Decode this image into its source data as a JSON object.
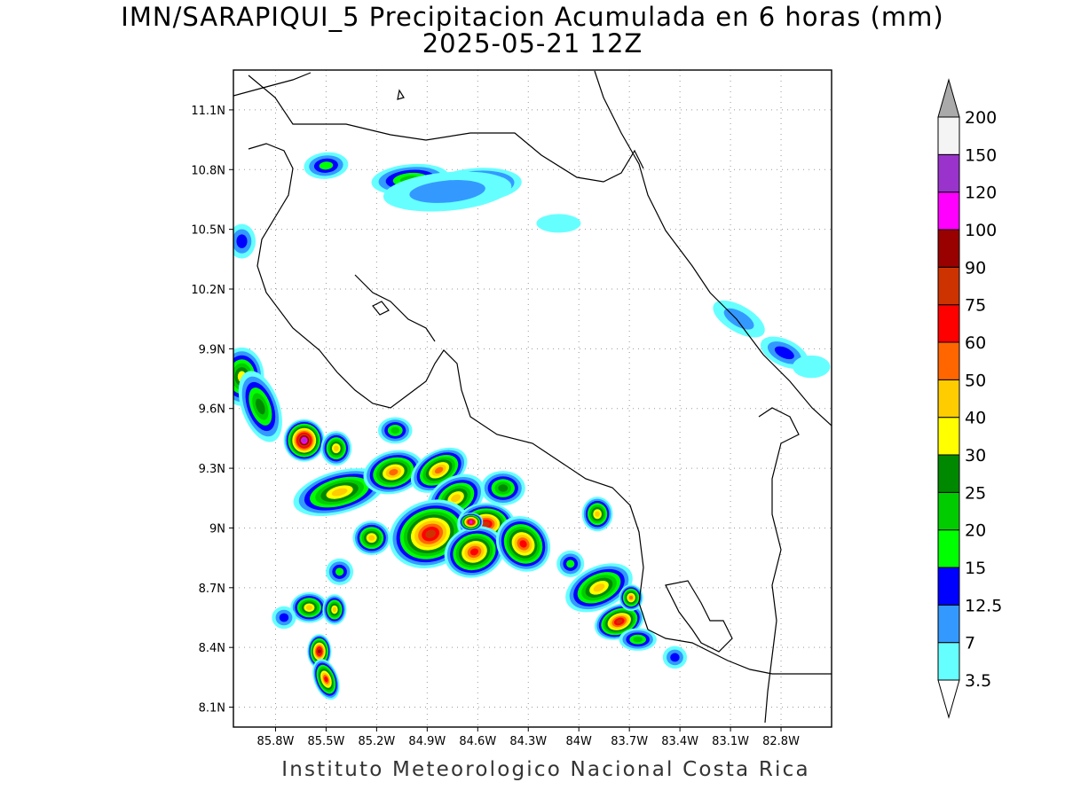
{
  "title": {
    "line1": "IMN/SARAPIQUI_5 Precipitacion Acumulada en 6 horas (mm)",
    "line2": "2025-05-21 12Z"
  },
  "credit": "Instituto Meteorologico Nacional Costa Rica",
  "map": {
    "lon_range": [
      -86.05,
      -82.5
    ],
    "lat_range": [
      8.0,
      11.3
    ],
    "lon_ticks": [
      "85.8W",
      "85.5W",
      "85.2W",
      "84.9W",
      "84.6W",
      "84.3W",
      "84W",
      "83.7W",
      "83.4W",
      "83.1W",
      "82.8W"
    ],
    "lat_ticks": [
      "11.1N",
      "10.8N",
      "10.5N",
      "10.2N",
      "9.9N",
      "9.6N",
      "9.3N",
      "9N",
      "8.7N",
      "8.4N",
      "8.1N"
    ],
    "grid": "dotted"
  },
  "colorbar": {
    "labels": [
      "3.5",
      "7",
      "12.5",
      "15",
      "20",
      "25",
      "30",
      "40",
      "50",
      "60",
      "75",
      "90",
      "100",
      "120",
      "150",
      "200"
    ],
    "colors": [
      "#66ffff",
      "#3399ff",
      "#0000ff",
      "#00ff00",
      "#00cc00",
      "#008800",
      "#ffff00",
      "#ffcc00",
      "#ff6600",
      "#ff0000",
      "#cc3300",
      "#990000",
      "#ff00ff",
      "#9933cc",
      "#f4f4f4",
      "#aaaaaa"
    ]
  },
  "rain_cells": [
    {
      "lon": -85.5,
      "lat": 10.82,
      "rx": 0.1,
      "ry": 0.04,
      "level": 3,
      "rot": -5
    },
    {
      "lon": -85.0,
      "lat": 10.75,
      "rx": 0.2,
      "ry": 0.05,
      "level": 4,
      "rot": -5
    },
    {
      "lon": -84.62,
      "lat": 10.72,
      "rx": 0.25,
      "ry": 0.06,
      "level": 5,
      "rot": -5
    },
    {
      "lon": -84.78,
      "lat": 10.69,
      "rx": 0.35,
      "ry": 0.07,
      "level": 1,
      "rot": -5
    },
    {
      "lon": -84.12,
      "lat": 10.53,
      "rx": 0.1,
      "ry": 0.02,
      "level": 0,
      "rot": 0
    },
    {
      "lon": -83.05,
      "lat": 10.05,
      "rx": 0.14,
      "ry": 0.04,
      "level": 1,
      "rot": 30
    },
    {
      "lon": -82.78,
      "lat": 9.88,
      "rx": 0.12,
      "ry": 0.04,
      "level": 2,
      "rot": 25
    },
    {
      "lon": -82.62,
      "lat": 9.81,
      "rx": 0.08,
      "ry": 0.03,
      "level": 0,
      "rot": 0
    },
    {
      "lon": -86.0,
      "lat": 10.44,
      "rx": 0.05,
      "ry": 0.06,
      "level": 2,
      "rot": 0
    },
    {
      "lon": -86.0,
      "lat": 9.76,
      "rx": 0.1,
      "ry": 0.12,
      "level": 6,
      "rot": 0
    },
    {
      "lon": -85.89,
      "lat": 9.61,
      "rx": 0.08,
      "ry": 0.16,
      "level": 5,
      "rot": -20
    },
    {
      "lon": -85.63,
      "lat": 9.44,
      "rx": 0.09,
      "ry": 0.08,
      "level": 13,
      "rot": 0
    },
    {
      "lon": -85.44,
      "lat": 9.4,
      "rx": 0.06,
      "ry": 0.06,
      "level": 7,
      "rot": 0
    },
    {
      "lon": -85.42,
      "lat": 9.18,
      "rx": 0.25,
      "ry": 0.08,
      "level": 7,
      "rot": -15
    },
    {
      "lon": -85.1,
      "lat": 9.28,
      "rx": 0.15,
      "ry": 0.08,
      "level": 8,
      "rot": -15
    },
    {
      "lon": -84.83,
      "lat": 9.29,
      "rx": 0.15,
      "ry": 0.07,
      "level": 8,
      "rot": -30
    },
    {
      "lon": -84.73,
      "lat": 9.15,
      "rx": 0.15,
      "ry": 0.08,
      "level": 7,
      "rot": -30
    },
    {
      "lon": -84.45,
      "lat": 9.2,
      "rx": 0.1,
      "ry": 0.06,
      "level": 5,
      "rot": 0
    },
    {
      "lon": -85.23,
      "lat": 8.95,
      "rx": 0.08,
      "ry": 0.06,
      "level": 7,
      "rot": 0
    },
    {
      "lon": -84.88,
      "lat": 8.97,
      "rx": 0.22,
      "ry": 0.14,
      "level": 10,
      "rot": -20
    },
    {
      "lon": -84.55,
      "lat": 9.02,
      "rx": 0.14,
      "ry": 0.08,
      "level": 10,
      "rot": 0
    },
    {
      "lon": -84.62,
      "lat": 8.88,
      "rx": 0.15,
      "ry": 0.1,
      "level": 9,
      "rot": -20
    },
    {
      "lon": -84.33,
      "lat": 8.92,
      "rx": 0.12,
      "ry": 0.12,
      "level": 9,
      "rot": -40
    },
    {
      "lon": -84.64,
      "lat": 9.03,
      "rx": 0.04,
      "ry": 0.02,
      "level": 12,
      "rot": 0
    },
    {
      "lon": -84.05,
      "lat": 8.82,
      "rx": 0.05,
      "ry": 0.04,
      "level": 3,
      "rot": 0
    },
    {
      "lon": -83.89,
      "lat": 9.07,
      "rx": 0.06,
      "ry": 0.06,
      "level": 7,
      "rot": 0
    },
    {
      "lon": -83.88,
      "lat": 8.7,
      "rx": 0.18,
      "ry": 0.08,
      "level": 7,
      "rot": -25
    },
    {
      "lon": -83.76,
      "lat": 8.53,
      "rx": 0.12,
      "ry": 0.06,
      "level": 10,
      "rot": -20
    },
    {
      "lon": -83.65,
      "lat": 8.44,
      "rx": 0.08,
      "ry": 0.03,
      "level": 4,
      "rot": 0
    },
    {
      "lon": -83.69,
      "lat": 8.65,
      "rx": 0.04,
      "ry": 0.04,
      "level": 8,
      "rot": 0
    },
    {
      "lon": -83.43,
      "lat": 8.35,
      "rx": 0.04,
      "ry": 0.03,
      "level": 2,
      "rot": 0
    },
    {
      "lon": -85.6,
      "lat": 8.6,
      "rx": 0.08,
      "ry": 0.05,
      "level": 7,
      "rot": 0
    },
    {
      "lon": -85.45,
      "lat": 8.59,
      "rx": 0.04,
      "ry": 0.05,
      "level": 7,
      "rot": 0
    },
    {
      "lon": -85.54,
      "lat": 8.38,
      "rx": 0.04,
      "ry": 0.06,
      "level": 11,
      "rot": 0
    },
    {
      "lon": -85.5,
      "lat": 8.24,
      "rx": 0.04,
      "ry": 0.08,
      "level": 9,
      "rot": -20
    },
    {
      "lon": -85.42,
      "lat": 8.78,
      "rx": 0.05,
      "ry": 0.04,
      "level": 3,
      "rot": 0
    },
    {
      "lon": -85.75,
      "lat": 8.55,
      "rx": 0.04,
      "ry": 0.03,
      "level": 2,
      "rot": 0
    },
    {
      "lon": -85.09,
      "lat": 9.49,
      "rx": 0.07,
      "ry": 0.04,
      "level": 4,
      "rot": 0
    }
  ]
}
